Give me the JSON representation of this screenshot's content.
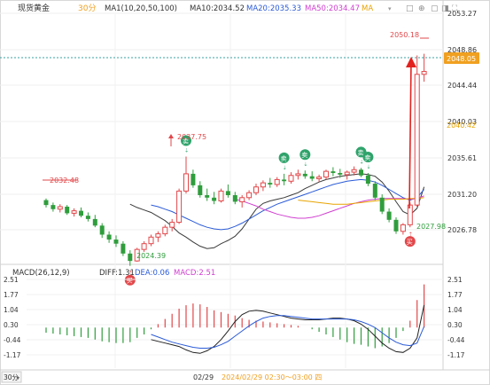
{
  "header": {
    "symbol": "现货黄金",
    "period": "30分",
    "ma_label": "MA1(10,20,50,100)",
    "ma10": "MA10:2034.52",
    "ma20": "MA20:2035.33",
    "ma50": "MA50:2034.47",
    "ma100": "MA",
    "tools": [
      "□",
      "⊕",
      "▢",
      "◨",
      "⛶"
    ]
  },
  "price_axis": {
    "ticks": [
      "2053.27",
      "2048.86",
      "2044.44",
      "2040.03",
      "2035.61",
      "2031.20",
      "2026.78"
    ],
    "current": "2048.05",
    "ma_tag": "2040.42"
  },
  "annotations": {
    "high1": "2037.75",
    "start": "2032.48",
    "low1": "2024.39",
    "low2": "2027.98",
    "peak": "2050.18"
  },
  "signals": {
    "buy": "买",
    "sell": "卖"
  },
  "macd": {
    "label": "MACD(26,12,9)",
    "diff": "DIFF:1.31",
    "dea": "DEA:0.06",
    "macd": "MACD:2.51",
    "ticks": [
      "2.51",
      "1.77",
      "1.04",
      "0.30",
      "-0.44",
      "-1.17"
    ]
  },
  "footer": {
    "period_button": "30分",
    "date": "02/29",
    "range": "2024/02/29 02:30～03:00 四"
  },
  "colors": {
    "up": "#e2474a",
    "down": "#2f9d3c",
    "ma10": "#3a3a3a",
    "ma20": "#2b5bd7",
    "ma50": "#d040d0",
    "ma100": "#e8a400",
    "accent": "#f0a020"
  },
  "chart_data": {
    "type": "candlestick",
    "ylim": [
      2024.8,
      2054.8
    ],
    "candles": [
      [
        2032.4,
        2032.6,
        2031.5,
        2031.8
      ],
      [
        2031.8,
        2032.1,
        2031.0,
        2031.3
      ],
      [
        2031.3,
        2031.9,
        2030.9,
        2031.6
      ],
      [
        2031.6,
        2031.8,
        2030.6,
        2030.8
      ],
      [
        2030.8,
        2031.4,
        2030.4,
        2031.1
      ],
      [
        2031.1,
        2031.5,
        2030.3,
        2030.5
      ],
      [
        2030.5,
        2030.9,
        2029.8,
        2030.1
      ],
      [
        2030.1,
        2030.6,
        2029.1,
        2029.3
      ],
      [
        2029.3,
        2029.6,
        2027.8,
        2028.2
      ],
      [
        2028.2,
        2028.6,
        2027.2,
        2027.6
      ],
      [
        2027.6,
        2028.1,
        2026.7,
        2027.1
      ],
      [
        2027.1,
        2027.4,
        2025.6,
        2025.9
      ],
      [
        2025.9,
        2026.3,
        2024.4,
        2025.0
      ],
      [
        2025.0,
        2026.6,
        2024.9,
        2026.4
      ],
      [
        2026.4,
        2027.4,
        2026.1,
        2027.1
      ],
      [
        2027.1,
        2028.2,
        2026.8,
        2027.9
      ],
      [
        2027.9,
        2028.6,
        2027.3,
        2028.3
      ],
      [
        2028.3,
        2029.4,
        2028.0,
        2029.1
      ],
      [
        2029.1,
        2030.1,
        2028.6,
        2029.7
      ],
      [
        2029.7,
        2033.8,
        2029.5,
        2033.5
      ],
      [
        2033.5,
        2037.7,
        2033.2,
        2035.6
      ],
      [
        2035.6,
        2036.1,
        2033.9,
        2034.2
      ],
      [
        2034.2,
        2034.7,
        2032.7,
        2033.0
      ],
      [
        2033.0,
        2033.8,
        2032.3,
        2032.7
      ],
      [
        2032.7,
        2033.4,
        2031.9,
        2032.3
      ],
      [
        2032.3,
        2033.8,
        2032.1,
        2033.5
      ],
      [
        2033.5,
        2034.3,
        2032.7,
        2033.0
      ],
      [
        2033.0,
        2033.4,
        2031.9,
        2032.2
      ],
      [
        2032.2,
        2033.0,
        2031.5,
        2032.7
      ],
      [
        2032.7,
        2033.6,
        2032.4,
        2033.3
      ],
      [
        2033.3,
        2034.4,
        2033.0,
        2034.0
      ],
      [
        2034.0,
        2034.8,
        2033.5,
        2034.5
      ],
      [
        2034.5,
        2035.1,
        2033.9,
        2034.3
      ],
      [
        2034.3,
        2035.2,
        2034.0,
        2034.9
      ],
      [
        2034.9,
        2035.6,
        2034.2,
        2034.7
      ],
      [
        2034.7,
        2035.8,
        2034.4,
        2035.4
      ],
      [
        2035.4,
        2036.1,
        2034.9,
        2035.6
      ],
      [
        2035.6,
        2036.0,
        2035.0,
        2035.3
      ],
      [
        2035.3,
        2035.9,
        2034.7,
        2035.0
      ],
      [
        2035.0,
        2035.5,
        2034.6,
        2035.2
      ],
      [
        2035.2,
        2036.1,
        2034.9,
        2035.9
      ],
      [
        2035.9,
        2036.4,
        2035.3,
        2035.7
      ],
      [
        2035.7,
        2036.2,
        2035.1,
        2035.5
      ],
      [
        2035.5,
        2036.0,
        2034.9,
        2035.8
      ],
      [
        2035.8,
        2036.5,
        2035.4,
        2036.1
      ],
      [
        2036.1,
        2036.3,
        2035.2,
        2035.4
      ],
      [
        2035.4,
        2035.7,
        2034.1,
        2034.4
      ],
      [
        2034.4,
        2034.7,
        2032.4,
        2032.7
      ],
      [
        2032.7,
        2033.1,
        2030.7,
        2031.0
      ],
      [
        2031.0,
        2031.4,
        2029.7,
        2030.0
      ],
      [
        2030.0,
        2030.3,
        2028.3,
        2028.6
      ],
      [
        2028.6,
        2029.6,
        2028.2,
        2029.4
      ],
      [
        2029.4,
        2032.1,
        2029.1,
        2031.8
      ],
      [
        2031.8,
        2050.0,
        2031.6,
        2047.7
      ],
      [
        2047.7,
        2050.2,
        2046.8,
        2048.05
      ]
    ],
    "ma_series": {
      "ma10": [
        2031.9,
        2031.5,
        2031.2,
        2030.9,
        2030.4,
        2029.9,
        2029.2,
        2028.4,
        2027.9,
        2027.3,
        2026.8,
        2026.5,
        2026.6,
        2027.1,
        2027.5,
        2028.0,
        2028.9,
        2030.1,
        2031.3,
        2032.0,
        2032.3,
        2032.5,
        2032.7,
        2033.0,
        2033.3,
        2033.8,
        2034.2,
        2034.6,
        2034.9,
        2035.1,
        2035.3,
        2035.4,
        2035.5,
        2035.6,
        2035.5,
        2035.3,
        2034.6,
        2033.5,
        2032.2,
        2031.0,
        2030.6,
        2031.4,
        2034.0
      ],
      "ma20": [
        2031.8,
        2031.6,
        2031.3,
        2031.0,
        2030.6,
        2030.2,
        2029.8,
        2029.4,
        2029.1,
        2028.9,
        2028.8,
        2028.9,
        2029.2,
        2029.6,
        2030.1,
        2030.6,
        2031.1,
        2031.5,
        2031.9,
        2032.2,
        2032.5,
        2032.8,
        2033.1,
        2033.4,
        2033.7,
        2034.0,
        2034.3,
        2034.5,
        2034.7,
        2034.8,
        2034.9,
        2034.8,
        2034.6,
        2034.2,
        2033.7,
        2033.2,
        2032.7,
        2032.4,
        2032.7,
        2033.7
      ],
      "ma50": [
        2032.5,
        2032.3,
        2032.0,
        2031.7,
        2031.3,
        2031.0,
        2030.7,
        2030.5,
        2030.3,
        2030.2,
        2030.2,
        2030.3,
        2030.5,
        2030.8,
        2031.1,
        2031.4,
        2031.7,
        2032.0,
        2032.2,
        2032.4,
        2032.5,
        2032.6,
        2032.6,
        2032.6,
        2032.6,
        2032.5,
        2032.6,
        2032.9
      ],
      "ma100": [
        2032.4,
        2032.3,
        2032.2,
        2032.1,
        2032.0,
        2031.9,
        2031.9,
        2031.9,
        2032.0,
        2032.1,
        2032.2,
        2032.3,
        2032.4,
        2032.5,
        2032.5,
        2032.5,
        2032.6,
        2032.6,
        2032.7
      ]
    },
    "signals": [
      {
        "type": "buy",
        "at": 12
      },
      {
        "type": "sell",
        "at": 20
      },
      {
        "type": "sell",
        "at": 34
      },
      {
        "type": "sell",
        "at": 37
      },
      {
        "type": "sell",
        "at": 45
      },
      {
        "type": "sell",
        "at": 46
      },
      {
        "type": "buy",
        "at": 52
      }
    ],
    "macd_ylim": [
      -2.0,
      2.8
    ],
    "macd_hist": [
      -0.3,
      -0.35,
      -0.4,
      -0.45,
      -0.5,
      -0.55,
      -0.6,
      -0.7,
      -0.8,
      -0.85,
      -0.9,
      -0.9,
      -0.85,
      -0.6,
      -0.4,
      -0.1,
      0.2,
      0.5,
      0.8,
      1.1,
      1.3,
      1.4,
      1.35,
      1.2,
      1.0,
      0.9,
      0.8,
      0.7,
      0.55,
      0.45,
      0.4,
      0.35,
      0.3,
      0.25,
      0.2,
      0.15,
      0.1,
      0.0,
      -0.1,
      -0.25,
      -0.4,
      -0.55,
      -0.7,
      -0.85,
      -0.95,
      -1.0,
      -1.1,
      -1.2,
      -1.1,
      -0.9,
      -0.6,
      -0.2,
      0.4,
      1.6,
      2.51
    ],
    "macd_diff": [
      -0.7,
      -0.8,
      -0.9,
      -1.0,
      -1.1,
      -1.3,
      -1.45,
      -1.5,
      -1.35,
      -1.1,
      -0.7,
      -0.2,
      0.35,
      0.75,
      0.95,
      1.0,
      0.95,
      0.85,
      0.75,
      0.65,
      0.55,
      0.5,
      0.45,
      0.45,
      0.45,
      0.5,
      0.55,
      0.55,
      0.5,
      0.4,
      0.2,
      -0.1,
      -0.5,
      -0.9,
      -1.2,
      -1.4,
      -1.45,
      -1.2,
      -0.6,
      1.31
    ],
    "macd_dea": [
      -0.4,
      -0.55,
      -0.7,
      -0.85,
      -0.95,
      -1.05,
      -1.15,
      -1.2,
      -1.2,
      -1.15,
      -1.0,
      -0.8,
      -0.5,
      -0.2,
      0.1,
      0.35,
      0.55,
      0.65,
      0.7,
      0.7,
      0.65,
      0.6,
      0.55,
      0.5,
      0.5,
      0.5,
      0.5,
      0.5,
      0.5,
      0.45,
      0.35,
      0.2,
      0.0,
      -0.3,
      -0.6,
      -0.85,
      -1.0,
      -1.05,
      -0.9,
      0.06
    ]
  }
}
